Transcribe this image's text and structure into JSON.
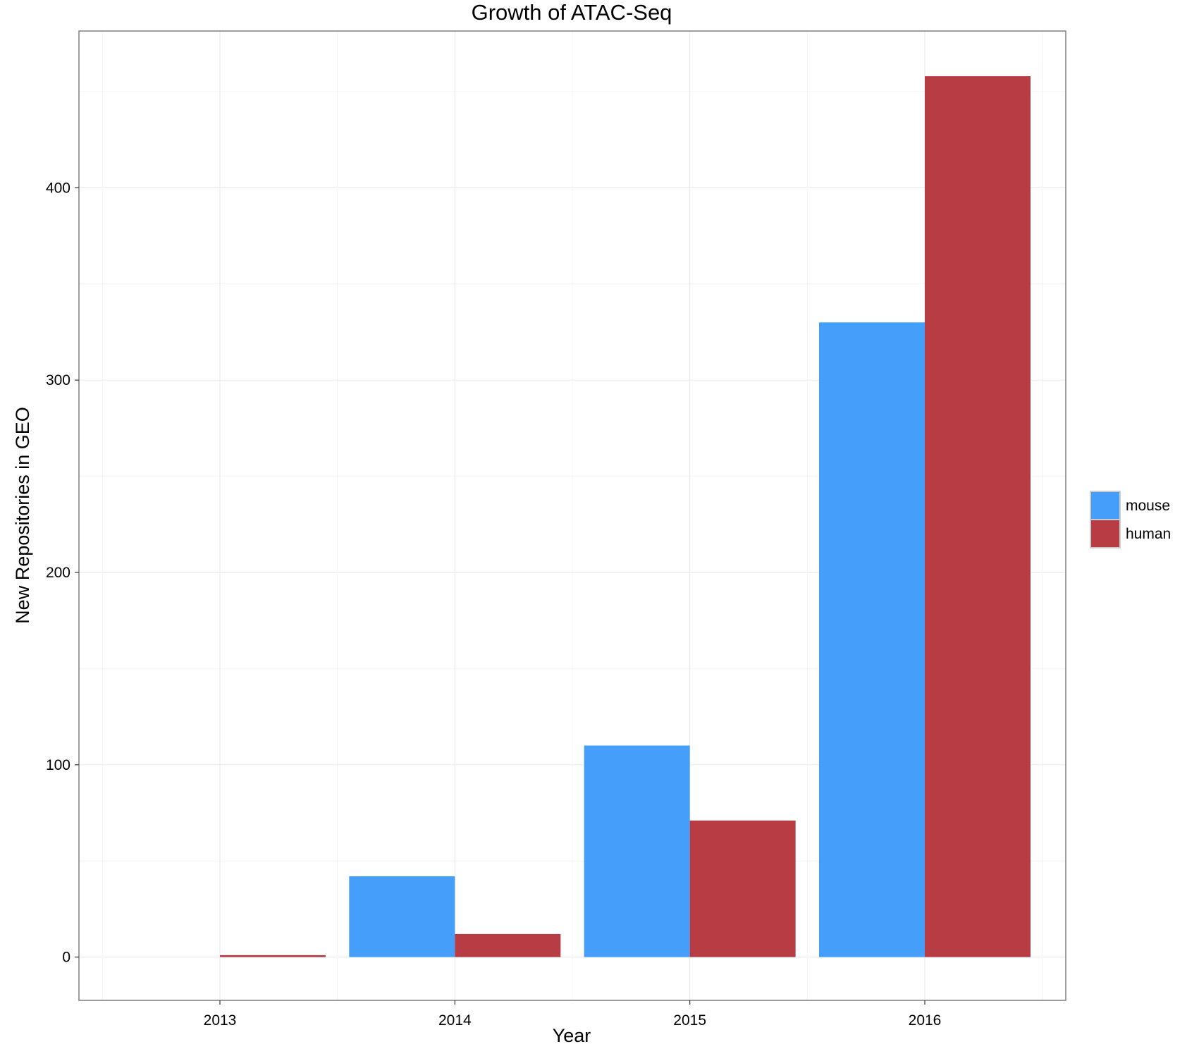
{
  "chart_data": {
    "type": "bar",
    "title": "Growth of ATAC-Seq",
    "xlabel": "Year",
    "ylabel": "New Repositories in GEO",
    "categories": [
      "2013",
      "2014",
      "2015",
      "2016"
    ],
    "series": [
      {
        "name": "mouse",
        "color": "#459FFA",
        "values": [
          0,
          42,
          110,
          330
        ]
      },
      {
        "name": "human",
        "color": "#B83C43",
        "values": [
          1,
          12,
          71,
          458
        ]
      }
    ],
    "ylim": [
      -22.5,
      481.5
    ],
    "yticks": [
      0,
      100,
      200,
      300,
      400
    ],
    "grid": true,
    "legend_position": "right"
  }
}
